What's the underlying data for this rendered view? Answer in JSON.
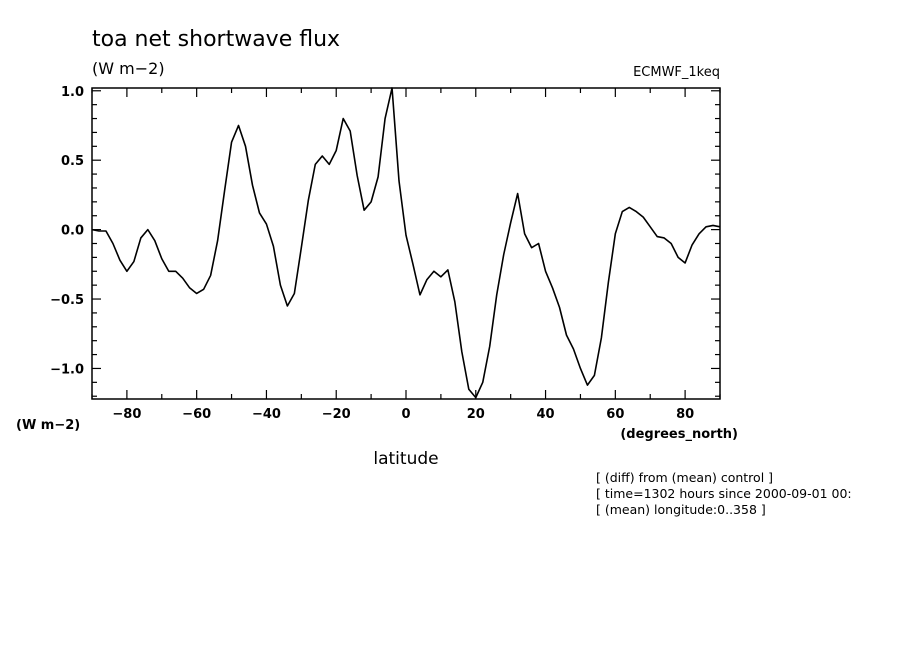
{
  "chart_data": {
    "type": "line",
    "title": "toa net shortwave flux",
    "units_label": "(W m−2)",
    "y_units_label": "(W m−2)",
    "dataset_label": "ECMWF_1keq",
    "xlabel": "latitude",
    "x_units_label": "(degrees_north)",
    "xlim": [
      -90,
      90
    ],
    "ylim": [
      -1.22,
      1.02
    ],
    "x_ticks": [
      -80,
      -60,
      -40,
      -20,
      0,
      20,
      40,
      60,
      80
    ],
    "x_tick_labels": [
      "−80",
      "−60",
      "−40",
      "−20",
      "0",
      "20",
      "40",
      "60",
      "80"
    ],
    "y_ticks": [
      1.0,
      0.5,
      0.0,
      -0.5,
      -1.0
    ],
    "y_tick_labels": [
      "1.0",
      "0.5",
      "0.0",
      "−0.5",
      "−1.0"
    ],
    "grid": false,
    "series": [
      {
        "x": [
          -90,
          -88,
          -86,
          -84,
          -82,
          -80,
          -78,
          -76,
          -74,
          -72,
          -70,
          -68,
          -66,
          -64,
          -62,
          -60,
          -58,
          -56,
          -54,
          -52,
          -50,
          -48,
          -46,
          -44,
          -42,
          -40,
          -38,
          -36,
          -34,
          -32,
          -30,
          -28,
          -26,
          -24,
          -22,
          -20,
          -18,
          -16,
          -14,
          -12,
          -10,
          -8,
          -6,
          -4,
          -2,
          0,
          2,
          4,
          6,
          8,
          10,
          12,
          14,
          16,
          18,
          20,
          22,
          24,
          26,
          28,
          30,
          32,
          34,
          36,
          38,
          40,
          42,
          44,
          46,
          48,
          50,
          52,
          54,
          56,
          58,
          60,
          62,
          64,
          66,
          68,
          70,
          72,
          74,
          76,
          78,
          80,
          82,
          84,
          86,
          88,
          90
        ],
        "y": [
          0.0,
          -0.01,
          -0.01,
          -0.1,
          -0.22,
          -0.3,
          -0.23,
          -0.06,
          0.0,
          -0.08,
          -0.21,
          -0.3,
          -0.3,
          -0.35,
          -0.42,
          -0.46,
          -0.43,
          -0.33,
          -0.08,
          0.28,
          0.63,
          0.75,
          0.6,
          0.32,
          0.12,
          0.04,
          -0.12,
          -0.4,
          -0.55,
          -0.46,
          -0.13,
          0.21,
          0.47,
          0.53,
          0.47,
          0.57,
          0.8,
          0.71,
          0.39,
          0.14,
          0.2,
          0.38,
          0.8,
          1.02,
          0.35,
          -0.04,
          -0.25,
          -0.47,
          -0.36,
          -0.3,
          -0.34,
          -0.29,
          -0.52,
          -0.88,
          -1.15,
          -1.21,
          -1.1,
          -0.84,
          -0.47,
          -0.18,
          0.05,
          0.26,
          -0.03,
          -0.13,
          -0.1,
          -0.3,
          -0.42,
          -0.56,
          -0.76,
          -0.86,
          -1.0,
          -1.12,
          -1.05,
          -0.78,
          -0.38,
          -0.03,
          0.13,
          0.16,
          0.13,
          0.09,
          0.02,
          -0.05,
          -0.06,
          -0.1,
          -0.2,
          -0.24,
          -0.11,
          -0.03,
          0.02,
          0.03,
          0.02
        ]
      }
    ],
    "info_lines": [
      "[ (diff) from (mean) control ]",
      "[ time=1302 hours since 2000-09-01 00:",
      "[ (mean) longitude:0..358 ]"
    ]
  }
}
